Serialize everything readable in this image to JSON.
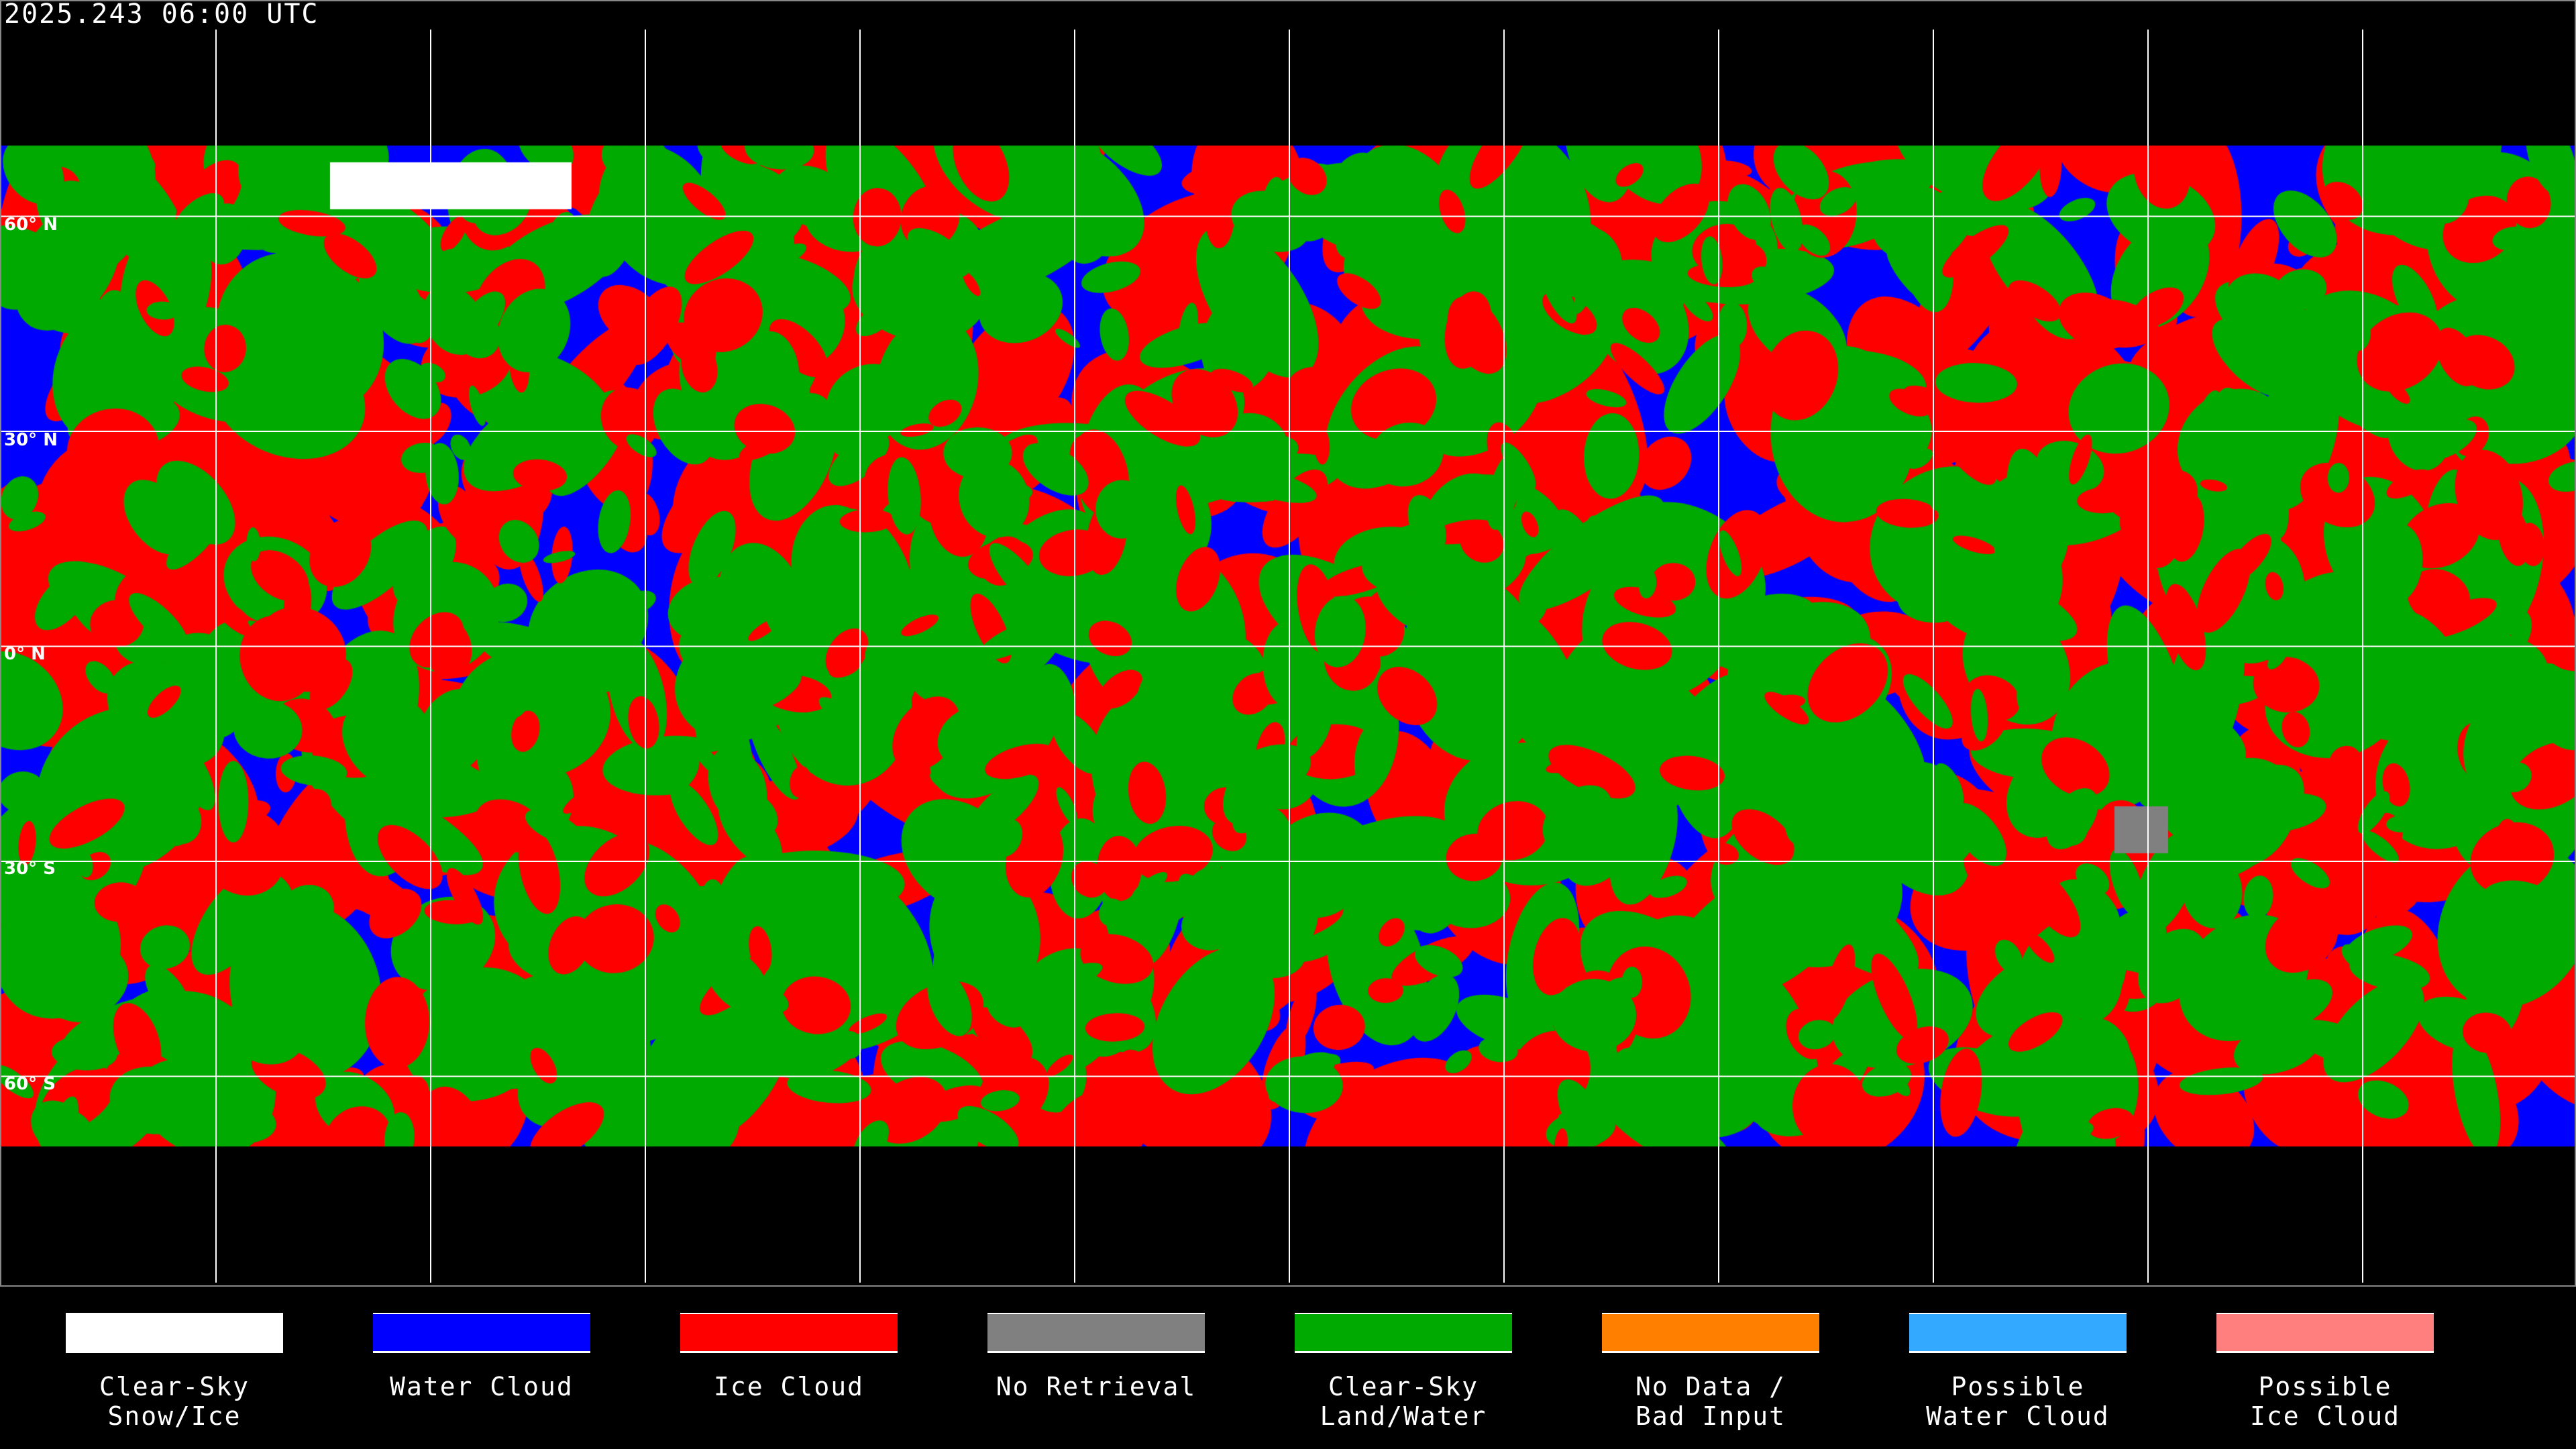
{
  "title": "2025.243 06:00 UTC",
  "latitude_labels": [
    "60° N",
    "30° N",
    "0° N",
    "30° S",
    "60° S"
  ],
  "legend": [
    {
      "label": "Clear-Sky\nSnow/Ice",
      "color": "#ffffff"
    },
    {
      "label": "Water Cloud",
      "color": "#0000ff"
    },
    {
      "label": "Ice Cloud",
      "color": "#ff0000"
    },
    {
      "label": "No Retrieval",
      "color": "#808080"
    },
    {
      "label": "Clear-Sky\nLand/Water",
      "color": "#00aa00"
    },
    {
      "label": "No Data /\nBad Input",
      "color": "#ff7f00"
    },
    {
      "label": "Possible\nWater Cloud",
      "color": "#33aaff"
    },
    {
      "label": "Possible\nIce Cloud",
      "color": "#ff7f7f"
    }
  ]
}
